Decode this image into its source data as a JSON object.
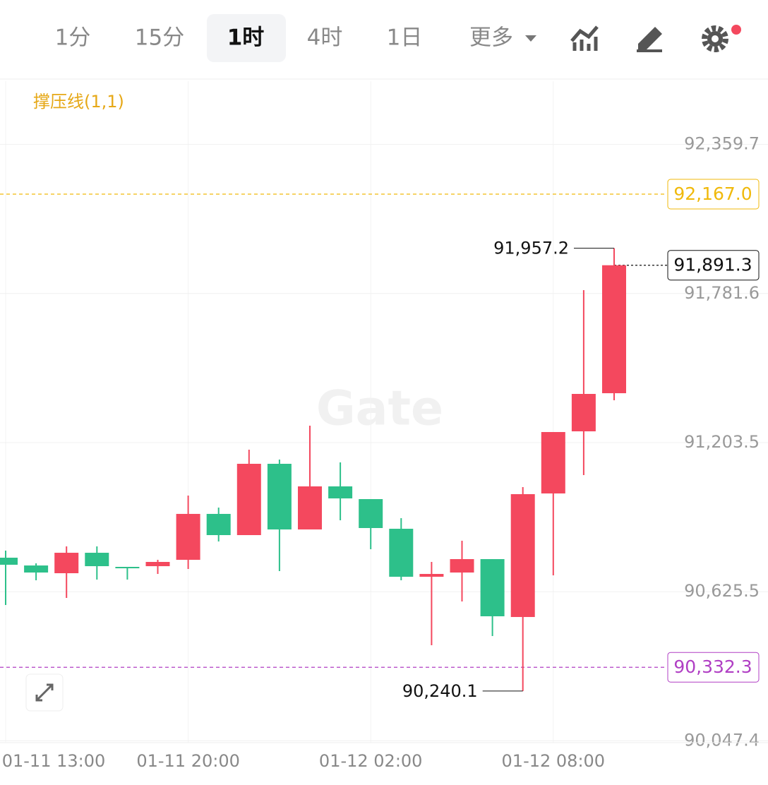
{
  "toolbar": {
    "tabs": [
      "1分",
      "15分",
      "1时",
      "4时",
      "1日",
      "更多"
    ],
    "active": 2
  },
  "chart_data": {
    "type": "candlestick",
    "indicator": "撑压线(1,1)",
    "watermark": "Gate",
    "categories": [
      "01-11 13:00",
      null,
      null,
      null,
      null,
      null,
      "01-11 20:00",
      null,
      null,
      null,
      null,
      null,
      "01-12 02:00",
      null,
      null,
      null,
      null,
      null,
      "01-12 08:00",
      null,
      null
    ],
    "open": [
      90757.2,
      90727.0,
      90697.0,
      90776.3,
      90721.6,
      90724.3,
      90749.0,
      90927.0,
      90844.8,
      91121.3,
      90866.7,
      91033.7,
      90984.4,
      90869.4,
      90683.3,
      90699.7,
      90751.7,
      90527.2,
      91006.3,
      91247.2,
      91395.0
    ],
    "high": [
      90784.6,
      90735.3,
      90801.0,
      90801.0,
      90721.6,
      90749.0,
      90998.1,
      90951.5,
      91176.0,
      91137.7,
      91269.1,
      91126.7,
      90984.4,
      90910.5,
      90740.8,
      90822.9,
      90751.7,
      91031.0,
      91244.5,
      91794.7,
      91957.2
    ],
    "low": [
      90573.8,
      90669.6,
      90601.1,
      90672.3,
      90672.3,
      90694.2,
      90713.4,
      90820.1,
      90844.8,
      90705.2,
      90866.7,
      90902.3,
      90790.0,
      90669.6,
      90417.7,
      90587.5,
      90453.3,
      90240.1,
      90688.7,
      91077.5,
      91367.6
    ],
    "close": [
      90729.8,
      90699.7,
      90776.3,
      90724.3,
      90718.9,
      90740.8,
      90927.0,
      90844.8,
      91121.3,
      90866.7,
      91033.7,
      90987.1,
      90872.2,
      90683.3,
      90694.2,
      90751.7,
      90530.0,
      91003.6,
      91244.5,
      91392.3,
      91891.3
    ],
    "up_color": "#f4485e",
    "down_color": "#2dc08a",
    "ylim": [
      90040,
      92605
    ],
    "yticks": [
      {
        "value": 90047.4,
        "label": "90,047.4"
      },
      {
        "value": 90625.5,
        "label": "90,625.5"
      },
      {
        "value": 91203.5,
        "label": "91,203.5"
      },
      {
        "value": 91781.6,
        "label": "91,781.6"
      },
      {
        "value": 92359.7,
        "label": "92,359.7"
      }
    ],
    "grid": true,
    "price_lines": [
      {
        "value": 92167.0,
        "label": "92,167.0",
        "color": "#f0b90b"
      },
      {
        "value": 90332.3,
        "label": "90,332.3",
        "color": "#b03fc4"
      },
      {
        "value": 91891.3,
        "label": "91,891.3",
        "color": "#111111"
      }
    ],
    "annotations": [
      {
        "value": 91957.2,
        "label": "91,957.2"
      },
      {
        "value": 90240.1,
        "label": "90,240.1"
      }
    ]
  }
}
